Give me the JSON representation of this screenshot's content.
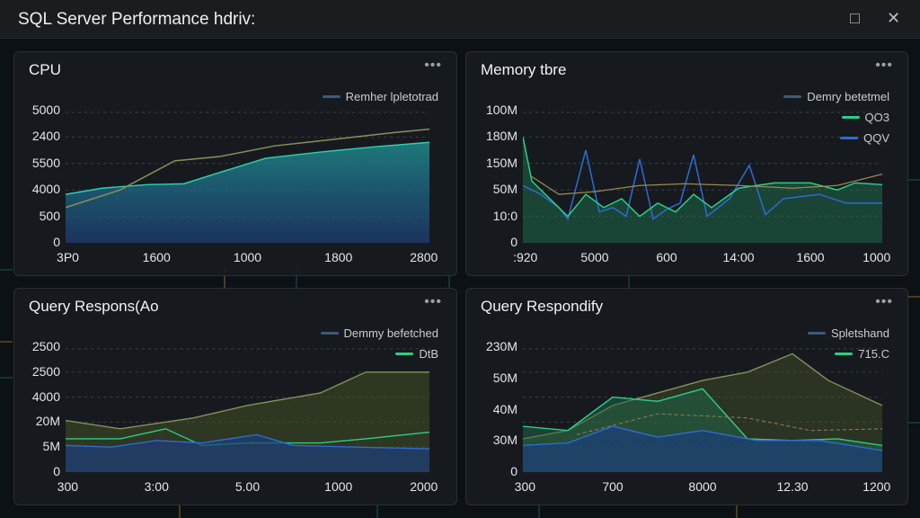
{
  "header": {
    "title": "SQL Server Performance  hdriv:"
  },
  "panels": [
    {
      "title": "CPU",
      "legend": [
        "Remher lpletotrad"
      ],
      "y_labels": [
        "5000",
        "2400",
        "5500",
        "4000",
        "500",
        "0"
      ],
      "x_labels": [
        "3P0",
        "1600",
        "1000",
        "1800",
        "2800"
      ]
    },
    {
      "title": "Memory tbre",
      "legend": [
        "Demry betetmel",
        "QO3",
        "QQV"
      ],
      "y_labels": [
        "100M",
        "180M",
        "150M",
        "50M",
        "10:0",
        "0"
      ],
      "x_labels": [
        ":920",
        "5000",
        "600",
        "14:00",
        "1600",
        "1000"
      ]
    },
    {
      "title": "Query Respons(Ao",
      "legend": [
        "Demmy befetched",
        "DtB"
      ],
      "y_labels": [
        "2500",
        "2500",
        "4000",
        "20M",
        "5M",
        "0"
      ],
      "x_labels": [
        "300",
        "3:00",
        "5.00",
        "1000",
        "2000"
      ]
    },
    {
      "title": "Query Respondify",
      "legend": [
        "Spletshand",
        "715.C"
      ],
      "y_labels": [
        "230M",
        "50M",
        "40M",
        "30M",
        "0"
      ],
      "x_labels": [
        "300",
        "700",
        "8000",
        "12.30",
        "1200"
      ]
    }
  ]
}
